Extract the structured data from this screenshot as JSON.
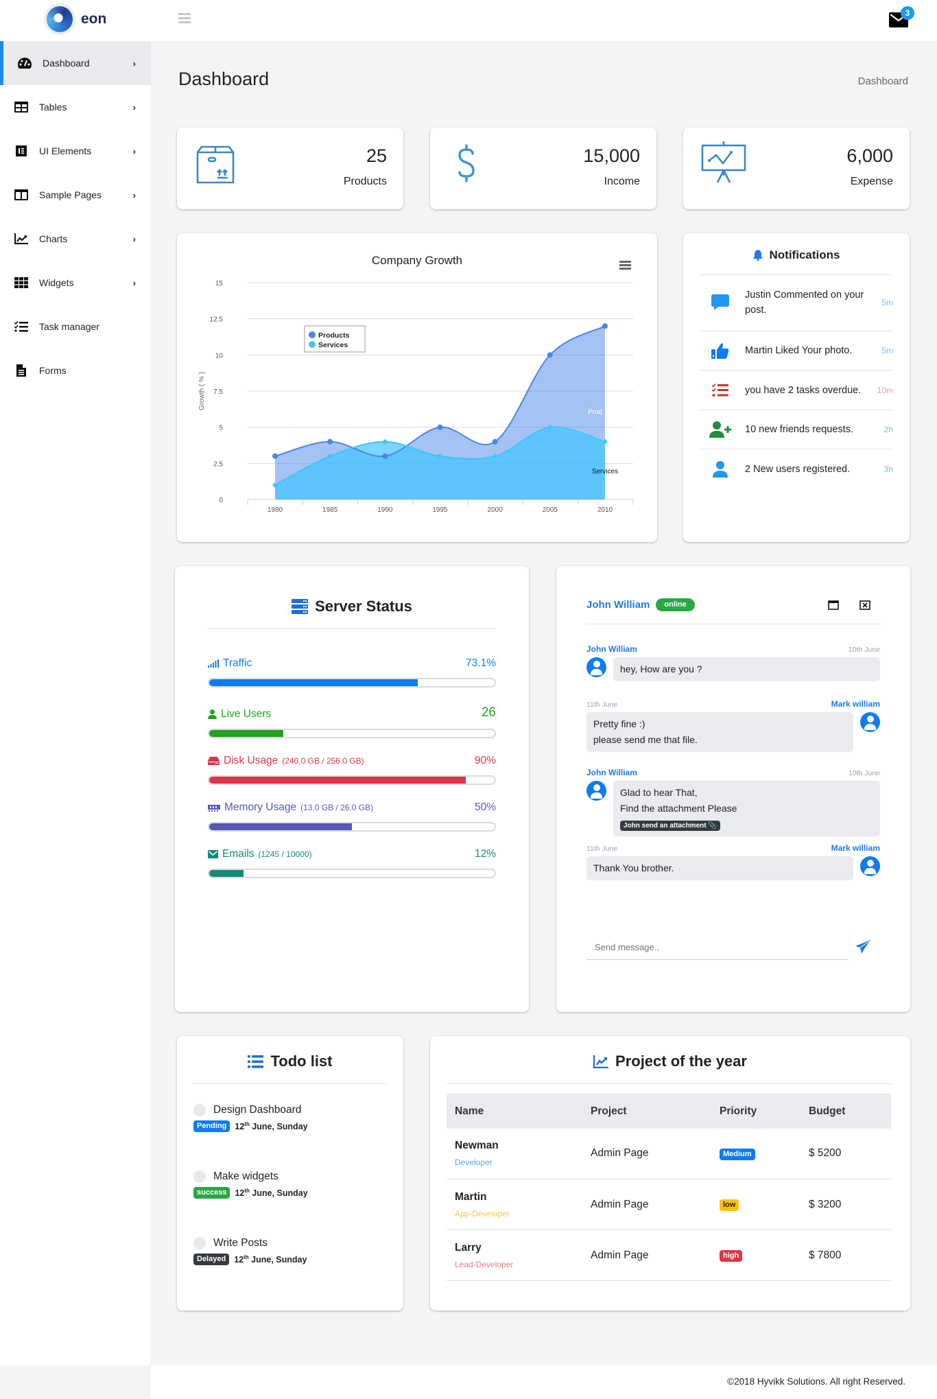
{
  "brand": {
    "name": "eon"
  },
  "topbar": {
    "mail_count": "3"
  },
  "sidebar": {
    "items": [
      {
        "label": "Dashboard",
        "icon": "dashboard-icon",
        "active": true,
        "chevron": true
      },
      {
        "label": "Tables",
        "icon": "table-icon",
        "chevron": true
      },
      {
        "label": "UI Elements",
        "icon": "ui-elements-icon",
        "chevron": true
      },
      {
        "label": "Sample Pages",
        "icon": "columns-icon",
        "chevron": true
      },
      {
        "label": "Charts",
        "icon": "chart-line-icon",
        "chevron": true
      },
      {
        "label": "Widgets",
        "icon": "grid-icon",
        "chevron": true
      },
      {
        "label": "Task manager",
        "icon": "tasks-icon",
        "chevron": false
      },
      {
        "label": "Forms",
        "icon": "file-icon",
        "chevron": false
      }
    ]
  },
  "page": {
    "title": "Dashboard",
    "breadcrumb": "Dashboard"
  },
  "stats": [
    {
      "value": "25",
      "label": "Products",
      "icon": "box-icon"
    },
    {
      "value": "15,000",
      "label": "Income",
      "icon": "dollar-icon"
    },
    {
      "value": "6,000",
      "label": "Expense",
      "icon": "presentation-chart-icon"
    }
  ],
  "chart_data": {
    "type": "area",
    "title": "Company Growth",
    "xlabel": "",
    "ylabel": "Growth ( % )",
    "categories": [
      "1980",
      "1985",
      "1990",
      "1995",
      "2000",
      "2005",
      "2010"
    ],
    "series": [
      {
        "name": "Products",
        "values": [
          3,
          4,
          3,
          5,
          4,
          10,
          12
        ],
        "color": "#4a86e8"
      },
      {
        "name": "Services",
        "values": [
          1,
          3,
          4,
          3,
          3,
          5,
          4
        ],
        "color": "#40c4ff"
      }
    ],
    "yticks": [
      "0",
      "2.5",
      "5",
      "7.5",
      "10",
      "12.5",
      "15"
    ],
    "ylim": [
      0,
      15
    ],
    "grid": true,
    "legend_position": "top-left inside",
    "annotations": [
      "Prod",
      "Services"
    ]
  },
  "notifications": {
    "title": "Notifications",
    "items": [
      {
        "text": "Justin Commented on your post.",
        "time": "5m",
        "time_color": "#7cb8f2",
        "icon": "comment-icon"
      },
      {
        "text": "Martin Liked Your photo.",
        "time": "5m",
        "time_color": "#7cb8f2",
        "icon": "thumbs-up-icon"
      },
      {
        "text": "you have 2 tasks overdue.",
        "time": "10m",
        "time_color": "#f09aa0",
        "icon": "tasks-icon"
      },
      {
        "text": "10 new friends requests.",
        "time": "2h",
        "time_color": "#7ccf8e",
        "icon": "user-plus-icon"
      },
      {
        "text": "2 New users registered.",
        "time": "3h",
        "time_color": "#7cb8f2",
        "icon": "user-icon"
      }
    ]
  },
  "server_status": {
    "title": "Server Status",
    "rows": [
      {
        "label": "Traffic",
        "detail": "",
        "value": "73.1%",
        "percent": 73.1,
        "color": "#0d7cf2"
      },
      {
        "label": "Live Users",
        "detail": "",
        "value": "26",
        "percent": 26,
        "color": "#1aa51a"
      },
      {
        "label": "Disk Usage",
        "detail": "(240.0 GB / 256.0 GB)",
        "value": "90%",
        "percent": 90,
        "color": "#dc3545"
      },
      {
        "label": "Memory Usage",
        "detail": "(13.0 GB / 26.0 GB)",
        "value": "50%",
        "percent": 50,
        "color": "#5558b8"
      },
      {
        "label": "Emails",
        "detail": "(1245 / 10000)",
        "value": "12%",
        "percent": 12,
        "color": "#128a78"
      }
    ]
  },
  "chat": {
    "contact": "John William",
    "status": "online",
    "messages": [
      {
        "sender": "John William",
        "date": "10th June",
        "side": "left",
        "lines": [
          "hey, How are you ?"
        ]
      },
      {
        "sender": "Mark william",
        "date": "11th June",
        "side": "right",
        "lines": [
          "Pretty fine :)",
          "please send me that file."
        ]
      },
      {
        "sender": "John William",
        "date": "10th June",
        "side": "left",
        "lines": [
          "Glad to hear That,",
          "Find the attachment Please"
        ],
        "attachment": "John send an attachment"
      },
      {
        "sender": "Mark william",
        "date": "11th June",
        "side": "right",
        "lines": [
          "Thank You brother."
        ]
      }
    ],
    "input_placeholder": "Send message.."
  },
  "todo": {
    "title": "Todo list",
    "items": [
      {
        "title": "Design Dashboard",
        "badge": "Pending",
        "badge_color": "#0d7cf2",
        "day": "12",
        "sup": "th",
        "date_rest": " June, Sunday"
      },
      {
        "title": "Make widgets",
        "badge": "success",
        "badge_color": "#28a745",
        "day": "12",
        "sup": "th",
        "date_rest": " June, Sunday"
      },
      {
        "title": "Write Posts",
        "badge": "Delayed",
        "badge_color": "#343a40",
        "day": "12",
        "sup": "th",
        "date_rest": " June, Sunday"
      }
    ]
  },
  "projects": {
    "title": "Project of the year",
    "columns": [
      "Name",
      "Project",
      "Priority",
      "Budget"
    ],
    "rows": [
      {
        "name": "Newman",
        "role": "Developer",
        "role_color": "#5aa5f0",
        "project": "Admin Page",
        "priority": "Medium",
        "priority_color": "#0d7cf2",
        "priority_text": "#fff",
        "budget": "$ 5200"
      },
      {
        "name": "Martin",
        "role": "App-Developer",
        "role_color": "#f5c542",
        "project": "Admin Page",
        "priority": "low",
        "priority_color": "#ffc107",
        "priority_text": "#222",
        "budget": "$ 3200"
      },
      {
        "name": "Larry",
        "role": "Lead-Developer",
        "role_color": "#e57b85",
        "project": "Admin Page",
        "priority": "high",
        "priority_color": "#dc3545",
        "priority_text": "#fff",
        "budget": "$ 7800"
      }
    ]
  },
  "footer": {
    "text": "©2018 Hyvikk Solutions. All right Reserved."
  }
}
